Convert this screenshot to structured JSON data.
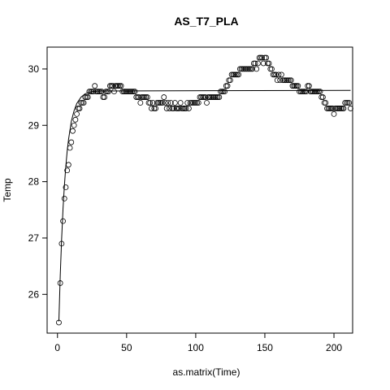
{
  "chart_data": {
    "type": "scatter",
    "title": "AS_T7_PLA",
    "xlabel": "as.matrix(Time)",
    "ylabel": "Temp",
    "x": [
      1,
      2,
      3,
      4,
      5,
      6,
      7,
      8,
      9,
      10,
      11,
      12,
      13,
      14,
      15,
      16,
      17,
      18,
      19,
      20,
      21,
      22,
      23,
      24,
      25,
      26,
      27,
      28,
      29,
      30,
      31,
      32,
      33,
      34,
      35,
      36,
      37,
      38,
      39,
      40,
      41,
      42,
      43,
      44,
      45,
      46,
      47,
      48,
      49,
      50,
      51,
      52,
      53,
      54,
      55,
      56,
      57,
      58,
      59,
      60,
      61,
      62,
      63,
      64,
      65,
      66,
      67,
      68,
      69,
      70,
      71,
      72,
      73,
      74,
      75,
      76,
      77,
      78,
      79,
      80,
      81,
      82,
      83,
      84,
      85,
      86,
      87,
      88,
      89,
      90,
      91,
      92,
      93,
      94,
      95,
      96,
      97,
      98,
      99,
      100,
      101,
      102,
      103,
      104,
      105,
      106,
      107,
      108,
      109,
      110,
      111,
      112,
      113,
      114,
      115,
      116,
      117,
      118,
      119,
      120,
      121,
      122,
      123,
      124,
      125,
      126,
      127,
      128,
      129,
      130,
      131,
      132,
      133,
      134,
      135,
      136,
      137,
      138,
      139,
      140,
      141,
      142,
      143,
      144,
      145,
      146,
      147,
      148,
      149,
      150,
      151,
      152,
      153,
      154,
      155,
      156,
      157,
      158,
      159,
      160,
      161,
      162,
      163,
      164,
      165,
      166,
      167,
      168,
      169,
      170,
      171,
      172,
      173,
      174,
      175,
      176,
      177,
      178,
      179,
      180,
      181,
      182,
      183,
      184,
      185,
      186,
      187,
      188,
      189,
      190,
      191,
      192,
      193,
      194,
      195,
      196,
      197,
      198,
      199,
      200,
      201,
      202,
      203,
      204,
      205,
      206,
      207,
      208,
      209,
      210,
      211,
      212
    ],
    "values": [
      25.5,
      26.2,
      26.9,
      27.3,
      27.7,
      27.9,
      28.2,
      28.3,
      28.6,
      28.7,
      28.9,
      29.0,
      29.1,
      29.2,
      29.3,
      29.3,
      29.4,
      29.4,
      29.4,
      29.5,
      29.5,
      29.5,
      29.6,
      29.6,
      29.6,
      29.6,
      29.7,
      29.6,
      29.6,
      29.6,
      29.6,
      29.6,
      29.5,
      29.5,
      29.6,
      29.6,
      29.6,
      29.7,
      29.7,
      29.7,
      29.6,
      29.7,
      29.7,
      29.7,
      29.7,
      29.7,
      29.6,
      29.6,
      29.6,
      29.6,
      29.6,
      29.6,
      29.6,
      29.6,
      29.6,
      29.6,
      29.5,
      29.5,
      29.5,
      29.4,
      29.5,
      29.5,
      29.5,
      29.5,
      29.5,
      29.4,
      29.4,
      29.3,
      29.4,
      29.3,
      29.3,
      29.4,
      29.4,
      29.4,
      29.4,
      29.4,
      29.5,
      29.4,
      29.3,
      29.4,
      29.3,
      29.4,
      29.3,
      29.3,
      29.4,
      29.3,
      29.3,
      29.3,
      29.4,
      29.3,
      29.3,
      29.3,
      29.3,
      29.4,
      29.3,
      29.4,
      29.4,
      29.4,
      29.4,
      29.4,
      29.4,
      29.4,
      29.5,
      29.5,
      29.5,
      29.5,
      29.5,
      29.4,
      29.5,
      29.5,
      29.5,
      29.5,
      29.5,
      29.5,
      29.5,
      29.5,
      29.5,
      29.6,
      29.6,
      29.6,
      29.6,
      29.7,
      29.7,
      29.8,
      29.8,
      29.9,
      29.9,
      29.9,
      29.9,
      29.9,
      29.9,
      30.0,
      30.0,
      30.0,
      30.0,
      30.0,
      30.0,
      30.0,
      30.0,
      30.0,
      30.0,
      30.1,
      30.1,
      30.0,
      30.1,
      30.2,
      30.2,
      30.2,
      30.1,
      30.2,
      30.2,
      30.1,
      30.1,
      30.0,
      30.0,
      29.9,
      29.9,
      29.9,
      29.8,
      29.9,
      29.8,
      29.9,
      29.8,
      29.8,
      29.8,
      29.8,
      29.8,
      29.8,
      29.8,
      29.7,
      29.7,
      29.7,
      29.7,
      29.7,
      29.6,
      29.6,
      29.6,
      29.6,
      29.6,
      29.6,
      29.7,
      29.7,
      29.6,
      29.6,
      29.6,
      29.6,
      29.6,
      29.6,
      29.6,
      29.6,
      29.5,
      29.5,
      29.4,
      29.4,
      29.3,
      29.3,
      29.3,
      29.3,
      29.3,
      29.2,
      29.3,
      29.3,
      29.3,
      29.3,
      29.3,
      29.3,
      29.3,
      29.4,
      29.4,
      29.4,
      29.4,
      29.3
    ],
    "fit_x": [
      1,
      2,
      3,
      4,
      5,
      6,
      7,
      8,
      10,
      12,
      14,
      17,
      20,
      25,
      30,
      212
    ],
    "fit_values": [
      25.52,
      26.34,
      26.99,
      27.52,
      27.93,
      28.27,
      28.54,
      28.75,
      29.07,
      29.26,
      29.39,
      29.5,
      29.56,
      29.6,
      29.61,
      29.62
    ],
    "xlim": [
      -7.5,
      213.5
    ],
    "ylim": [
      25.312,
      30.388
    ],
    "xticks": [
      0,
      50,
      100,
      150,
      200
    ],
    "yticks": [
      26,
      27,
      28,
      29,
      30
    ]
  }
}
